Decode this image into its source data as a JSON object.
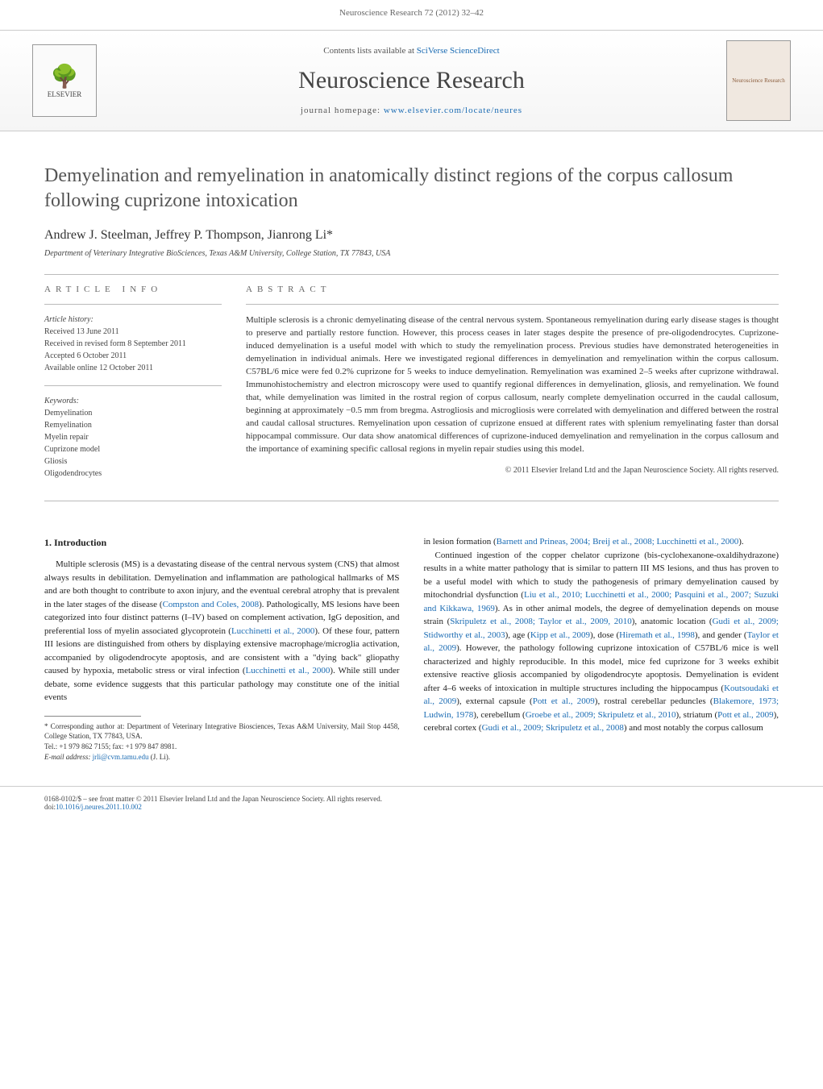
{
  "header_citation": "Neuroscience Research 72 (2012) 32–42",
  "masthead": {
    "contents_prefix": "Contents lists available at ",
    "contents_link": "SciVerse ScienceDirect",
    "journal_name": "Neuroscience Research",
    "homepage_prefix": "journal homepage: ",
    "homepage_link": "www.elsevier.com/locate/neures",
    "publisher_logo_text": "ELSEVIER",
    "cover_text": "Neuroscience Research"
  },
  "article": {
    "title": "Demyelination and remyelination in anatomically distinct regions of the corpus callosum following cuprizone intoxication",
    "authors": "Andrew J. Steelman, Jeffrey P. Thompson, Jianrong Li*",
    "affiliation": "Department of Veterinary Integrative BioSciences, Texas A&M University, College Station, TX 77843, USA"
  },
  "article_info": {
    "heading": "article info",
    "history_heading": "Article history:",
    "received": "Received 13 June 2011",
    "revised": "Received in revised form 8 September 2011",
    "accepted": "Accepted 6 October 2011",
    "online": "Available online 12 October 2011",
    "keywords_heading": "Keywords:",
    "keywords": [
      "Demyelination",
      "Remyelination",
      "Myelin repair",
      "Cuprizone model",
      "Gliosis",
      "Oligodendrocytes"
    ]
  },
  "abstract": {
    "heading": "abstract",
    "text": "Multiple sclerosis is a chronic demyelinating disease of the central nervous system. Spontaneous remyelination during early disease stages is thought to preserve and partially restore function. However, this process ceases in later stages despite the presence of pre-oligodendrocytes. Cuprizone-induced demyelination is a useful model with which to study the remyelination process. Previous studies have demonstrated heterogeneities in demyelination in individual animals. Here we investigated regional differences in demyelination and remyelination within the corpus callosum. C57BL/6 mice were fed 0.2% cuprizone for 5 weeks to induce demyelination. Remyelination was examined 2–5 weeks after cuprizone withdrawal. Immunohistochemistry and electron microscopy were used to quantify regional differences in demyelination, gliosis, and remyelination. We found that, while demyelination was limited in the rostral region of corpus callosum, nearly complete demyelination occurred in the caudal callosum, beginning at approximately −0.5 mm from bregma. Astrogliosis and microgliosis were correlated with demyelination and differed between the rostral and caudal callosal structures. Remyelination upon cessation of cuprizone ensued at different rates with splenium remyelinating faster than dorsal hippocampal commissure. Our data show anatomical differences of cuprizone-induced demyelination and remyelination in the corpus callosum and the importance of examining specific callosal regions in myelin repair studies using this model.",
    "copyright": "© 2011 Elsevier Ireland Ltd and the Japan Neuroscience Society. All rights reserved."
  },
  "intro": {
    "heading": "1. Introduction",
    "para1_a": "Multiple sclerosis (MS) is a devastating disease of the central nervous system (CNS) that almost always results in debilitation. Demyelination and inflammation are pathological hallmarks of MS and are both thought to contribute to axon injury, and the eventual cerebral atrophy that is prevalent in the later stages of the disease (",
    "ref1": "Compston and Coles, 2008",
    "para1_b": "). Pathologically, MS lesions have been categorized into four distinct patterns (I–IV) based on complement activation, IgG deposition, and preferential loss of myelin associated glycoprotein (",
    "ref2": "Lucchinetti et al., 2000",
    "para1_c": "). Of these four, pattern III lesions are distinguished from others by displaying extensive macrophage/microglia activation, accompanied by oligodendrocyte apoptosis, and are consistent with a \"dying back\" gliopathy caused by hypoxia, metabolic stress or viral infection (",
    "ref3": "Lucchinetti et al., 2000",
    "para1_d": "). While still under debate, some evidence suggests that this particular pathology may constitute one of the initial events",
    "col2_a": "in lesion formation (",
    "col2_ref1": "Barnett and Prineas, 2004; Breij et al., 2008; Lucchinetti et al., 2000",
    "col2_b": ").",
    "para2_a": "Continued ingestion of the copper chelator cuprizone (bis-cyclohexanone-oxaldihydrazone) results in a white matter pathology that is similar to pattern III MS lesions, and thus has proven to be a useful model with which to study the pathogenesis of primary demyelination caused by mitochondrial dysfunction (",
    "para2_ref1": "Liu et al., 2010; Lucchinetti et al., 2000; Pasquini et al., 2007; Suzuki and Kikkawa, 1969",
    "para2_b": "). As in other animal models, the degree of demyelination depends on mouse strain (",
    "para2_ref2": "Skripuletz et al., 2008; Taylor et al., 2009, 2010",
    "para2_c": "), anatomic location (",
    "para2_ref3": "Gudi et al., 2009; Stidworthy et al., 2003",
    "para2_d": "), age (",
    "para2_ref4": "Kipp et al., 2009",
    "para2_e": "), dose (",
    "para2_ref5": "Hiremath et al., 1998",
    "para2_f": "), and gender (",
    "para2_ref6": "Taylor et al., 2009",
    "para2_g": "). However, the pathology following cuprizone intoxication of C57BL/6 mice is well characterized and highly reproducible. In this model, mice fed cuprizone for 3 weeks exhibit extensive reactive gliosis accompanied by oligodendrocyte apoptosis. Demyelination is evident after 4–6 weeks of intoxication in multiple structures including the hippocampus (",
    "para2_ref7": "Koutsoudaki et al., 2009",
    "para2_h": "), external capsule (",
    "para2_ref8": "Pott et al., 2009",
    "para2_i": "), rostral cerebellar peduncles (",
    "para2_ref9": "Blakemore, 1973; Ludwin, 1978",
    "para2_j": "), cerebellum (",
    "para2_ref10": "Groebe et al., 2009; Skripuletz et al., 2010",
    "para2_k": "), striatum (",
    "para2_ref11": "Pott et al., 2009",
    "para2_l": "), cerebral cortex (",
    "para2_ref12": "Gudi et al., 2009; Skripuletz et al., 2008",
    "para2_m": ") and most notably the corpus callosum"
  },
  "footnote": {
    "corresp": "* Corresponding author at: Department of Veterinary Integrative Biosciences, Texas A&M University, Mail Stop 4458, College Station, TX 77843, USA.",
    "tel": "Tel.: +1 979 862 7155; fax: +1 979 847 8981.",
    "email_label": "E-mail address: ",
    "email": "jrli@cvm.tamu.edu",
    "email_suffix": " (J. Li)."
  },
  "footer": {
    "line1": "0168-0102/$ – see front matter © 2011 Elsevier Ireland Ltd and the Japan Neuroscience Society. All rights reserved.",
    "doi_label": "doi:",
    "doi": "10.1016/j.neures.2011.10.002"
  },
  "colors": {
    "link": "#1a6bb3",
    "text": "#333333",
    "muted": "#666666",
    "border": "#cccccc"
  }
}
